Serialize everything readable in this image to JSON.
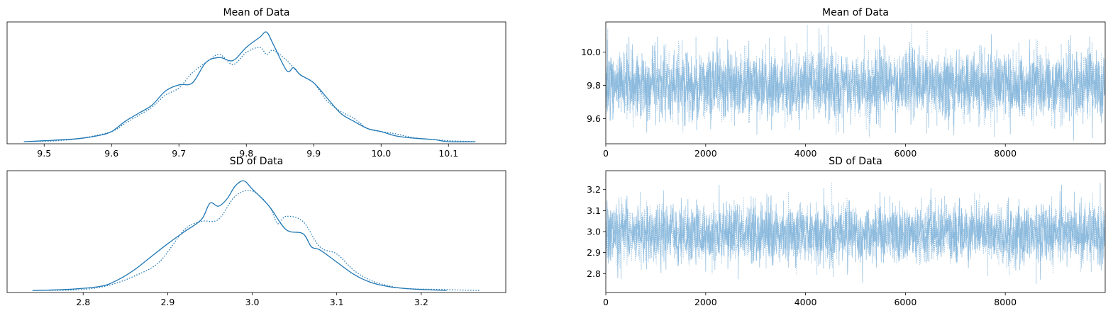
{
  "figure": {
    "colors": {
      "line": "#1f77b4",
      "trace": "#7fb3d9"
    }
  },
  "chart_data": [
    {
      "id": "kde-mean",
      "type": "line",
      "title": "Mean of Data",
      "xlabel": "",
      "ylabel": "",
      "xlim": [
        9.445,
        10.185
      ],
      "ylim": [
        0,
        1.2
      ],
      "x_ticks": [
        "9.5",
        "9.6",
        "9.7",
        "9.8",
        "9.9",
        "10.0",
        "10.1"
      ],
      "y_ticks": [],
      "series": [
        {
          "style": "solid",
          "x": [
            9.47,
            9.5,
            9.55,
            9.58,
            9.6,
            9.62,
            9.64,
            9.66,
            9.68,
            9.7,
            9.72,
            9.74,
            9.76,
            9.78,
            9.8,
            9.82,
            9.83,
            9.84,
            9.86,
            9.87,
            9.88,
            9.9,
            9.92,
            9.94,
            9.96,
            9.98,
            10.0,
            10.02,
            10.04,
            10.06,
            10.08,
            10.1,
            10.14
          ],
          "y": [
            0.02,
            0.03,
            0.05,
            0.08,
            0.12,
            0.22,
            0.3,
            0.38,
            0.52,
            0.58,
            0.6,
            0.8,
            0.85,
            0.82,
            0.95,
            1.05,
            1.1,
            0.98,
            0.72,
            0.75,
            0.68,
            0.6,
            0.45,
            0.3,
            0.22,
            0.15,
            0.12,
            0.08,
            0.06,
            0.05,
            0.04,
            0.02,
            0.02
          ]
        },
        {
          "style": "dotted",
          "x": [
            9.47,
            9.52,
            9.56,
            9.6,
            9.62,
            9.64,
            9.66,
            9.68,
            9.7,
            9.72,
            9.74,
            9.76,
            9.78,
            9.8,
            9.82,
            9.83,
            9.84,
            9.86,
            9.88,
            9.9,
            9.92,
            9.94,
            9.96,
            9.98,
            10.0,
            10.02,
            10.04,
            10.06,
            10.08,
            10.1,
            10.14
          ],
          "y": [
            0.02,
            0.03,
            0.06,
            0.12,
            0.2,
            0.28,
            0.36,
            0.48,
            0.55,
            0.7,
            0.8,
            0.88,
            0.78,
            0.9,
            0.95,
            0.88,
            0.92,
            0.82,
            0.68,
            0.6,
            0.42,
            0.32,
            0.25,
            0.15,
            0.12,
            0.1,
            0.07,
            0.05,
            0.04,
            0.03,
            0.02
          ]
        }
      ]
    },
    {
      "id": "trace-mean",
      "type": "line",
      "title": "Mean of Data",
      "xlabel": "",
      "ylabel": "",
      "xlim": [
        0,
        10000
      ],
      "ylim": [
        9.45,
        10.18
      ],
      "x_ticks": [
        "0",
        "2000",
        "4000",
        "6000",
        "8000"
      ],
      "y_ticks": [
        "9.6",
        "9.8",
        "10.0"
      ],
      "trace": {
        "samples": 10000,
        "center": 9.8,
        "spread": 0.1,
        "chains": 2
      }
    },
    {
      "id": "kde-sd",
      "type": "line",
      "title": "SD of Data",
      "xlabel": "",
      "ylabel": "",
      "xlim": [
        2.71,
        3.3
      ],
      "ylim": [
        0,
        1.2
      ],
      "x_ticks": [
        "2.8",
        "2.9",
        "3.0",
        "3.1",
        "3.2"
      ],
      "y_ticks": [],
      "series": [
        {
          "style": "solid",
          "x": [
            2.74,
            2.78,
            2.82,
            2.84,
            2.86,
            2.88,
            2.9,
            2.92,
            2.94,
            2.95,
            2.96,
            2.97,
            2.98,
            2.99,
            3.0,
            3.02,
            3.04,
            3.06,
            3.07,
            3.08,
            3.1,
            3.12,
            3.14,
            3.16,
            3.18,
            3.2,
            3.23
          ],
          "y": [
            0.02,
            0.03,
            0.06,
            0.12,
            0.22,
            0.35,
            0.48,
            0.6,
            0.72,
            0.88,
            0.85,
            0.92,
            1.05,
            1.1,
            1.02,
            0.85,
            0.62,
            0.58,
            0.45,
            0.42,
            0.3,
            0.18,
            0.1,
            0.06,
            0.04,
            0.03,
            0.02
          ]
        },
        {
          "style": "dotted",
          "x": [
            2.76,
            2.8,
            2.83,
            2.86,
            2.89,
            2.92,
            2.94,
            2.96,
            2.98,
            3.0,
            3.02,
            3.03,
            3.04,
            3.06,
            3.08,
            3.1,
            3.12,
            3.14,
            3.16,
            3.18,
            3.22,
            3.27
          ],
          "y": [
            0.02,
            0.03,
            0.07,
            0.16,
            0.3,
            0.62,
            0.7,
            0.72,
            0.95,
            1.0,
            0.85,
            0.68,
            0.75,
            0.7,
            0.45,
            0.38,
            0.22,
            0.12,
            0.07,
            0.04,
            0.03,
            0.02
          ]
        }
      ]
    },
    {
      "id": "trace-sd",
      "type": "line",
      "title": "SD of Data",
      "xlabel": "",
      "ylabel": "",
      "xlim": [
        0,
        10000
      ],
      "ylim": [
        2.71,
        3.29
      ],
      "x_ticks": [
        "0",
        "2000",
        "4000",
        "6000",
        "8000"
      ],
      "y_ticks": [
        "2.8",
        "2.9",
        "3.0",
        "3.1",
        "3.2"
      ],
      "trace": {
        "samples": 10000,
        "center": 2.99,
        "spread": 0.07,
        "chains": 2
      }
    }
  ]
}
